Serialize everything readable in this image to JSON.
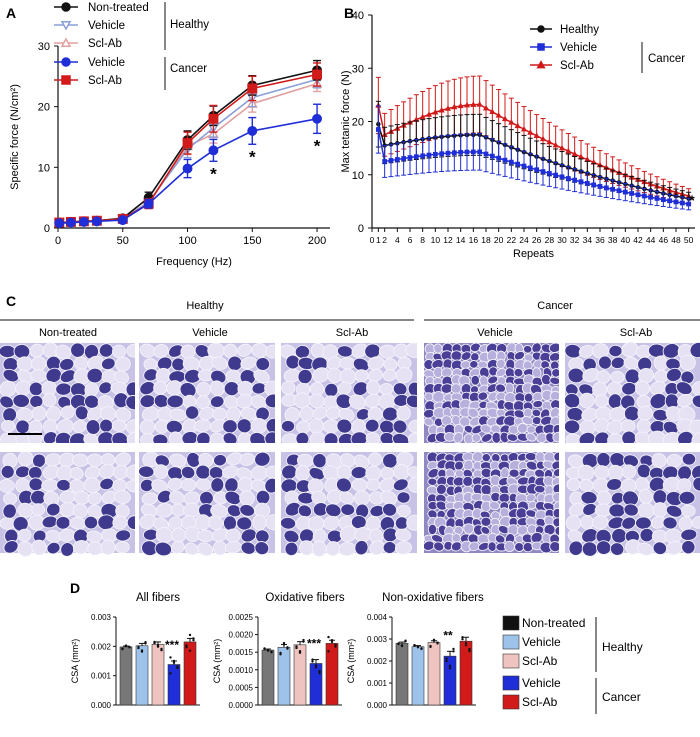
{
  "panels": {
    "A": "A",
    "B": "B",
    "C": "C",
    "D": "D"
  },
  "legend_groups": {
    "healthy": "Healthy",
    "cancer": "Cancer"
  },
  "colors": {
    "nontreated": "#111111",
    "h_vehicle": "#8a9fd8",
    "h_sclab": "#e0a0a0",
    "c_vehicle": "#1f2ed6",
    "c_sclab": "#d11a1a",
    "d_vehicle": "#9ec3ea",
    "d_sclab": "#efc3bf",
    "d_nontreated": "#777777",
    "stain_dark": "#3d3b8c",
    "stain_light": "#d4d0ec"
  },
  "chart_data": [
    {
      "id": "A",
      "type": "line",
      "xlabel": "Frequency (Hz)",
      "ylabel": "Specific force (N/cm²)",
      "xlim": [
        0,
        210
      ],
      "ylim": [
        0,
        30
      ],
      "x_ticks": [
        0,
        50,
        100,
        150,
        200
      ],
      "y_ticks": [
        0,
        10,
        20,
        30
      ],
      "x": [
        1,
        10,
        20,
        30,
        50,
        70,
        100,
        120,
        150,
        200
      ],
      "series": [
        {
          "name": "Non-treated",
          "group": "Healthy",
          "marker": "circle",
          "color": "#111111",
          "values": [
            0.9,
            1.0,
            1.1,
            1.2,
            1.6,
            5.0,
            14.5,
            18.5,
            23.5,
            26.0
          ],
          "errors": [
            0.2,
            0.2,
            0.2,
            0.2,
            0.3,
            0.9,
            1.5,
            1.6,
            1.6,
            1.6
          ]
        },
        {
          "name": "Vehicle",
          "group": "Healthy",
          "marker": "triangle-down",
          "color": "#8a9fd8",
          "values": [
            0.8,
            0.9,
            1.0,
            1.1,
            1.5,
            4.3,
            13.0,
            16.5,
            21.5,
            24.5
          ],
          "errors": [
            0.2,
            0.2,
            0.2,
            0.2,
            0.3,
            0.8,
            1.4,
            1.5,
            1.5,
            1.4
          ]
        },
        {
          "name": "Scl-Ab",
          "group": "Healthy",
          "marker": "triangle-up",
          "color": "#e0a0a0",
          "values": [
            0.8,
            0.9,
            1.0,
            1.1,
            1.5,
            4.1,
            13.5,
            15.5,
            20.5,
            23.8
          ],
          "errors": [
            0.2,
            0.2,
            0.2,
            0.2,
            0.3,
            0.8,
            1.4,
            1.5,
            1.4,
            1.3
          ]
        },
        {
          "name": "Vehicle",
          "group": "Cancer",
          "marker": "circle",
          "color": "#1f2ed6",
          "values": [
            0.8,
            0.9,
            1.0,
            1.1,
            1.3,
            4.0,
            9.8,
            12.8,
            16.0,
            18.0
          ],
          "errors": [
            0.2,
            0.2,
            0.2,
            0.2,
            0.3,
            0.7,
            1.5,
            1.8,
            2.2,
            2.4
          ]
        },
        {
          "name": "Scl-Ab",
          "group": "Cancer",
          "marker": "square",
          "color": "#d11a1a",
          "values": [
            0.9,
            1.0,
            1.1,
            1.2,
            1.5,
            4.0,
            14.0,
            18.0,
            23.0,
            25.3
          ],
          "errors": [
            0.2,
            0.2,
            0.2,
            0.2,
            0.3,
            0.8,
            1.8,
            2.2,
            2.0,
            1.9
          ]
        }
      ],
      "annotations": [
        {
          "x": 120,
          "text": "*"
        },
        {
          "x": 150,
          "text": "*"
        },
        {
          "x": 200,
          "text": "*"
        }
      ]
    },
    {
      "id": "B",
      "type": "line",
      "xlabel": "Repeats",
      "ylabel": "Max tetanic force (N)",
      "xlim": [
        0,
        51
      ],
      "ylim": [
        0,
        40
      ],
      "x_ticks": [
        0,
        1,
        2,
        4,
        6,
        8,
        10,
        12,
        14,
        16,
        18,
        20,
        22,
        24,
        26,
        28,
        30,
        32,
        34,
        36,
        38,
        40,
        42,
        44,
        46,
        48,
        50
      ],
      "y_ticks": [
        0,
        10,
        20,
        30,
        40
      ],
      "series": [
        {
          "name": "Healthy",
          "color": "#111111",
          "peak": 17.5,
          "start": 19.5,
          "second": 15.5,
          "end": 5.5,
          "err_frac": 0.22
        },
        {
          "name": "Vehicle",
          "group": "Cancer",
          "color": "#1f2ed6",
          "peak": 14.3,
          "start": 18.5,
          "second": 12.5,
          "end": 4.5,
          "err_frac": 0.24
        },
        {
          "name": "Scl-Ab",
          "group": "Cancer",
          "color": "#d11a1a",
          "peak": 23.2,
          "start": 23.0,
          "second": 17.5,
          "end": 6.0,
          "err_frac": 0.23
        }
      ],
      "annotation": "*"
    },
    {
      "id": "D",
      "type": "bar",
      "ylabel": "CSA (mm²)",
      "legend": [
        {
          "name": "Non-treated",
          "color": "#111111",
          "group": "Healthy"
        },
        {
          "name": "Vehicle",
          "color": "#9ec3ea",
          "group": "Healthy"
        },
        {
          "name": "Scl-Ab",
          "color": "#efc3bf",
          "group": "Healthy"
        },
        {
          "name": "Vehicle",
          "color": "#1f2ed6",
          "group": "Cancer"
        },
        {
          "name": "Scl-Ab",
          "color": "#d11a1a",
          "group": "Cancer"
        }
      ],
      "subplots": [
        {
          "title": "All fibers",
          "ylim": [
            0,
            0.003
          ],
          "ticks": [
            "0.000",
            "0.001",
            "0.002",
            "0.003"
          ],
          "tick_values": [
            0,
            0.001,
            0.002,
            0.003
          ],
          "values": [
            0.00198,
            0.00202,
            0.00207,
            0.00138,
            0.00215
          ],
          "errors": [
            3e-05,
            8e-05,
            8e-05,
            0.00012,
            0.00012
          ],
          "sig": "***",
          "sig_index": 3
        },
        {
          "title": "Oxidative fibers",
          "ylim": [
            0,
            0.0025
          ],
          "ticks": [
            "0.0000",
            "0.0005",
            "0.0010",
            "0.0015",
            "0.0020",
            "0.0025"
          ],
          "tick_values": [
            0,
            0.0005,
            0.001,
            0.0015,
            0.002,
            0.0025
          ],
          "values": [
            0.00156,
            0.00164,
            0.00171,
            0.00118,
            0.00175
          ],
          "errors": [
            3e-05,
            8e-05,
            9e-05,
            0.00011,
            9e-05
          ],
          "sig": "***",
          "sig_index": 3
        },
        {
          "title": "Non-oxidative fibers",
          "ylim": [
            0,
            0.004
          ],
          "ticks": [
            "0.000",
            "0.001",
            "0.002",
            "0.003",
            "0.004"
          ],
          "tick_values": [
            0,
            0.001,
            0.002,
            0.003,
            0.004
          ],
          "values": [
            0.0028,
            0.00265,
            0.00284,
            0.00222,
            0.0029
          ],
          "errors": [
            6e-05,
            5e-05,
            8e-05,
            0.00022,
            0.00018
          ],
          "sig": "**",
          "sig_index": 3
        }
      ]
    }
  ],
  "panel_c": {
    "group_healthy": "Healthy",
    "group_cancer": "Cancer",
    "columns": [
      "Non-treated",
      "Vehicle",
      "Scl-Ab",
      "Vehicle",
      "Scl-Ab"
    ]
  }
}
